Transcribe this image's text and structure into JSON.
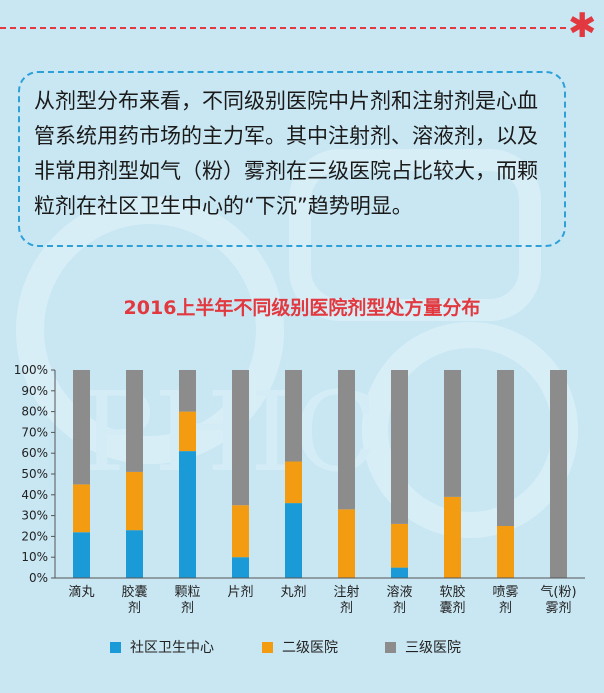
{
  "paragraph": "从剂型分布来看，不同级别医院中片剂和注射剂是心血管系统用药市场的主力军。其中注射剂、溶液剂，以及非常用剂型如气（粉）雾剂在三级医院占比较大，而颗粒剂在社区卫生中心的“下沉”趋势明显。",
  "watermark": "PHIC",
  "colors": {
    "background": "#c9e7f3",
    "accent_red": "#e2383f",
    "border_blue": "#2da0d8"
  },
  "chart_data": {
    "type": "bar",
    "stacked": true,
    "title": "2016上半年不同级别医院剂型处方量分布",
    "categories": [
      [
        "滴丸"
      ],
      [
        "胶囊",
        "剂"
      ],
      [
        "颗粒",
        "剂"
      ],
      [
        "片剂"
      ],
      [
        "丸剂"
      ],
      [
        "注射",
        "剂"
      ],
      [
        "溶液",
        "剂"
      ],
      [
        "软胶",
        "囊剂"
      ],
      [
        "喷雾",
        "剂"
      ],
      [
        "气(粉)",
        "雾剂"
      ]
    ],
    "series": [
      {
        "name": "社区卫生中心",
        "color": "#1a9ad6",
        "values": [
          22,
          23,
          61,
          10,
          36,
          0,
          5,
          0,
          0,
          0
        ]
      },
      {
        "name": "二级医院",
        "color": "#f39c12",
        "values": [
          23,
          28,
          19,
          25,
          20,
          33,
          21,
          39,
          25,
          0
        ]
      },
      {
        "name": "三级医院",
        "color": "#8c8c8c",
        "values": [
          55,
          49,
          20,
          65,
          44,
          67,
          74,
          61,
          75,
          100
        ]
      }
    ],
    "yticks": [
      "0%",
      "10%",
      "20%",
      "30%",
      "40%",
      "50%",
      "60%",
      "70%",
      "80%",
      "90%",
      "100%"
    ],
    "ylim": [
      0,
      100
    ],
    "legend_position": "bottom"
  }
}
